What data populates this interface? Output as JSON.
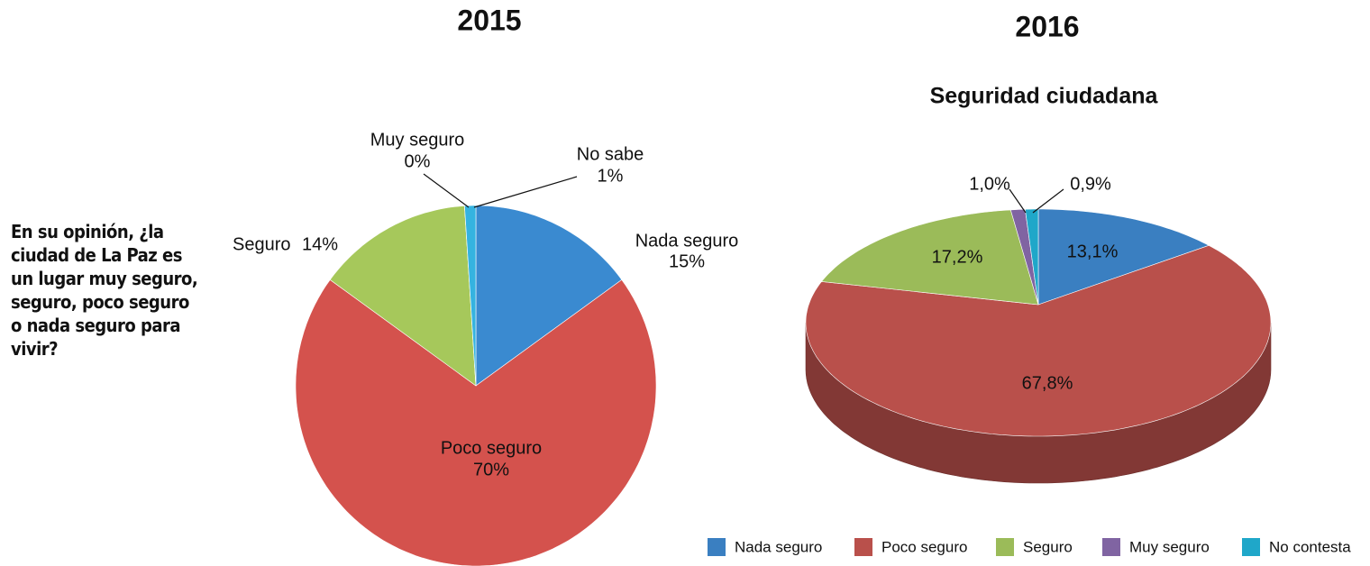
{
  "chart_data": [
    {
      "type": "pie",
      "title": "2015",
      "annotation": "En su opinión, ¿la ciudad de La Paz es un lugar muy seguro, seguro, poco seguro o nada seguro para vivir?",
      "categories": [
        "Nada seguro",
        "Poco seguro",
        "Seguro",
        "Muy seguro",
        "No sabe"
      ],
      "values": [
        15,
        70,
        14,
        0,
        1
      ],
      "value_labels": [
        "15%",
        "70%",
        "14%",
        "0%",
        "1%"
      ],
      "colors": [
        "#3a8ad0",
        "#d4524d",
        "#a6c85b",
        "#8d6fb2",
        "#35b3e0"
      ]
    },
    {
      "type": "pie3d",
      "heading": "2016",
      "title": "Seguridad ciudadana",
      "categories": [
        "Nada seguro",
        "Poco seguro",
        "Seguro",
        "Muy seguro",
        "No contesta"
      ],
      "values": [
        13.1,
        67.8,
        17.2,
        1.0,
        0.9
      ],
      "value_labels": [
        "13,1%",
        "67,8%",
        "17,2%",
        "1,0%",
        "0,9%"
      ],
      "colors": [
        "#3a7fc1",
        "#b9504b",
        "#9bbb59",
        "#8064a2",
        "#1fa7c9"
      ],
      "legend": "bottom"
    }
  ]
}
